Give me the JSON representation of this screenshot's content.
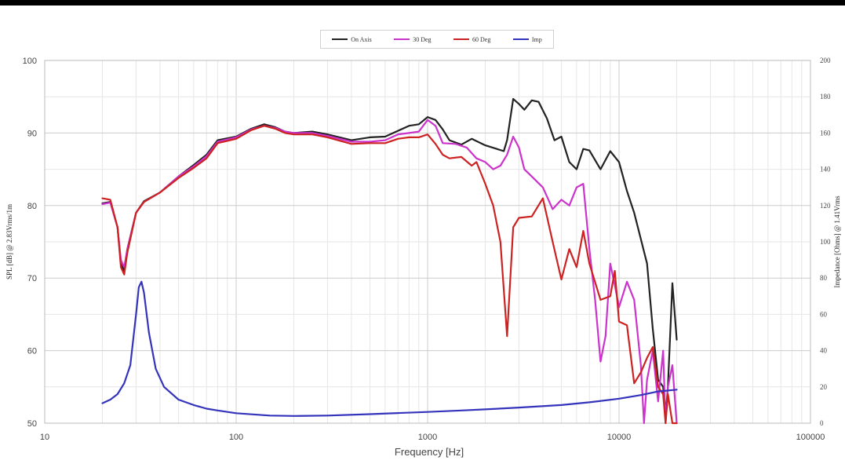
{
  "chart_data": {
    "type": "line",
    "x_scale": "log",
    "xlim": [
      10,
      100000
    ],
    "ylim": [
      50,
      100
    ],
    "y2lim": [
      0,
      200
    ],
    "grid": true,
    "legend_placement": "top-center",
    "xlabel": "Frequency [Hz]",
    "ylabel": "SPL [dB] @ 2.83Vrms/1m",
    "y2label": "Impedance [Ohms] @ 1.41Vrms",
    "x_ticks": [
      "10",
      "100",
      "1000",
      "10000",
      "100000"
    ],
    "y_ticks": [
      "50",
      "60",
      "70",
      "80",
      "90",
      "100"
    ],
    "y2_ticks": [
      "0",
      "20",
      "40",
      "60",
      "80",
      "100",
      "120",
      "140",
      "160",
      "180",
      "200"
    ],
    "series": [
      {
        "name": "On Axis",
        "axis": "left",
        "color": "#222222",
        "points": [
          [
            20,
            80.3
          ],
          [
            22,
            80.5
          ],
          [
            24,
            77
          ],
          [
            25,
            72
          ],
          [
            26,
            71
          ],
          [
            27,
            74
          ],
          [
            30,
            79
          ],
          [
            33,
            80.6
          ],
          [
            40,
            81.8
          ],
          [
            50,
            84
          ],
          [
            60,
            85.6
          ],
          [
            70,
            87
          ],
          [
            80,
            89
          ],
          [
            100,
            89.5
          ],
          [
            120,
            90.6
          ],
          [
            140,
            91.2
          ],
          [
            160,
            90.8
          ],
          [
            180,
            90.2
          ],
          [
            200,
            90
          ],
          [
            250,
            90.2
          ],
          [
            300,
            89.8
          ],
          [
            400,
            89
          ],
          [
            500,
            89.4
          ],
          [
            600,
            89.5
          ],
          [
            700,
            90.3
          ],
          [
            800,
            91
          ],
          [
            900,
            91.2
          ],
          [
            1000,
            92.2
          ],
          [
            1100,
            91.8
          ],
          [
            1200,
            90.5
          ],
          [
            1300,
            89
          ],
          [
            1500,
            88.4
          ],
          [
            1700,
            89.2
          ],
          [
            2000,
            88.3
          ],
          [
            2300,
            87.8
          ],
          [
            2500,
            87.5
          ],
          [
            2600,
            89
          ],
          [
            2800,
            94.7
          ],
          [
            3000,
            94
          ],
          [
            3200,
            93.2
          ],
          [
            3500,
            94.5
          ],
          [
            3800,
            94.3
          ],
          [
            4200,
            92
          ],
          [
            4600,
            89
          ],
          [
            5000,
            89.5
          ],
          [
            5500,
            86
          ],
          [
            6000,
            85
          ],
          [
            6500,
            87.8
          ],
          [
            7000,
            87.6
          ],
          [
            8000,
            85
          ],
          [
            9000,
            87.5
          ],
          [
            10000,
            86
          ],
          [
            11000,
            82
          ],
          [
            12000,
            79
          ],
          [
            14000,
            72
          ],
          [
            15000,
            63
          ],
          [
            16000,
            56
          ],
          [
            17000,
            55
          ],
          [
            17500,
            51
          ],
          [
            18000,
            55
          ],
          [
            19000,
            69.3
          ],
          [
            20000,
            61.5
          ]
        ]
      },
      {
        "name": "30 Deg",
        "axis": "left",
        "color": "#cc33cc",
        "points": [
          [
            20,
            80.2
          ],
          [
            22,
            80.4
          ],
          [
            24,
            77
          ],
          [
            25,
            72.5
          ],
          [
            26,
            71.5
          ],
          [
            27,
            74
          ],
          [
            30,
            79
          ],
          [
            33,
            80.5
          ],
          [
            40,
            81.8
          ],
          [
            50,
            84
          ],
          [
            60,
            85.4
          ],
          [
            70,
            86.8
          ],
          [
            80,
            88.8
          ],
          [
            100,
            89.4
          ],
          [
            120,
            90.5
          ],
          [
            140,
            91
          ],
          [
            160,
            90.7
          ],
          [
            180,
            90.2
          ],
          [
            200,
            90
          ],
          [
            250,
            90
          ],
          [
            300,
            89.6
          ],
          [
            400,
            88.8
          ],
          [
            500,
            88.8
          ],
          [
            600,
            89
          ],
          [
            700,
            89.8
          ],
          [
            800,
            90
          ],
          [
            900,
            90.2
          ],
          [
            1000,
            91.8
          ],
          [
            1100,
            91
          ],
          [
            1200,
            88.6
          ],
          [
            1400,
            88.5
          ],
          [
            1600,
            88
          ],
          [
            1800,
            86.5
          ],
          [
            2000,
            86
          ],
          [
            2200,
            85
          ],
          [
            2400,
            85.5
          ],
          [
            2600,
            87
          ],
          [
            2800,
            89.5
          ],
          [
            3000,
            88
          ],
          [
            3200,
            85
          ],
          [
            3500,
            84
          ],
          [
            4000,
            82.5
          ],
          [
            4500,
            79.5
          ],
          [
            5000,
            80.8
          ],
          [
            5500,
            80
          ],
          [
            6000,
            82.5
          ],
          [
            6500,
            83
          ],
          [
            7000,
            74
          ],
          [
            7500,
            67
          ],
          [
            8000,
            58.5
          ],
          [
            8500,
            62
          ],
          [
            9000,
            72
          ],
          [
            9500,
            69
          ],
          [
            10000,
            66
          ],
          [
            11000,
            69.5
          ],
          [
            12000,
            67
          ],
          [
            13000,
            58
          ],
          [
            13500,
            50
          ],
          [
            14000,
            56
          ],
          [
            15000,
            60
          ],
          [
            16000,
            53
          ],
          [
            17000,
            60
          ],
          [
            17500,
            50
          ],
          [
            18000,
            55
          ],
          [
            19000,
            58
          ],
          [
            20000,
            50
          ]
        ]
      },
      {
        "name": "60 Deg",
        "axis": "left",
        "color": "#cc2222",
        "points": [
          [
            20,
            81
          ],
          [
            22,
            80.8
          ],
          [
            24,
            77
          ],
          [
            25,
            71.5
          ],
          [
            26,
            70.5
          ],
          [
            27,
            73.5
          ],
          [
            30,
            79
          ],
          [
            33,
            80.5
          ],
          [
            40,
            81.8
          ],
          [
            50,
            83.8
          ],
          [
            60,
            85.2
          ],
          [
            70,
            86.5
          ],
          [
            80,
            88.6
          ],
          [
            100,
            89.2
          ],
          [
            120,
            90.4
          ],
          [
            140,
            91
          ],
          [
            160,
            90.6
          ],
          [
            180,
            90
          ],
          [
            200,
            89.8
          ],
          [
            250,
            89.8
          ],
          [
            300,
            89.4
          ],
          [
            400,
            88.5
          ],
          [
            500,
            88.6
          ],
          [
            600,
            88.6
          ],
          [
            700,
            89.2
          ],
          [
            800,
            89.4
          ],
          [
            900,
            89.4
          ],
          [
            1000,
            89.8
          ],
          [
            1100,
            88.5
          ],
          [
            1200,
            87
          ],
          [
            1300,
            86.5
          ],
          [
            1500,
            86.7
          ],
          [
            1700,
            85.5
          ],
          [
            1800,
            86
          ],
          [
            2000,
            83
          ],
          [
            2200,
            80
          ],
          [
            2400,
            75
          ],
          [
            2600,
            62
          ],
          [
            2800,
            77
          ],
          [
            3000,
            78.3
          ],
          [
            3500,
            78.5
          ],
          [
            4000,
            81
          ],
          [
            4500,
            75
          ],
          [
            5000,
            69.8
          ],
          [
            5500,
            74
          ],
          [
            6000,
            71.5
          ],
          [
            6500,
            76.5
          ],
          [
            7000,
            72
          ],
          [
            8000,
            67
          ],
          [
            9000,
            67.5
          ],
          [
            9500,
            71
          ],
          [
            10000,
            64
          ],
          [
            11000,
            63.5
          ],
          [
            12000,
            55.5
          ],
          [
            13000,
            57
          ],
          [
            14000,
            59
          ],
          [
            15000,
            60.5
          ],
          [
            16000,
            55
          ],
          [
            17000,
            54
          ],
          [
            17500,
            50
          ],
          [
            18000,
            54
          ],
          [
            19000,
            50
          ],
          [
            20000,
            50
          ]
        ]
      },
      {
        "name": "Imp",
        "axis": "right",
        "color": "#3333bb",
        "points": [
          [
            20,
            11
          ],
          [
            22,
            13
          ],
          [
            24,
            16
          ],
          [
            26,
            22
          ],
          [
            28,
            32
          ],
          [
            30,
            60
          ],
          [
            31,
            75
          ],
          [
            32,
            78
          ],
          [
            33,
            72
          ],
          [
            35,
            50
          ],
          [
            38,
            30
          ],
          [
            42,
            20
          ],
          [
            50,
            13
          ],
          [
            60,
            10
          ],
          [
            70,
            8
          ],
          [
            80,
            7
          ],
          [
            100,
            5.5
          ],
          [
            150,
            4.2
          ],
          [
            200,
            4
          ],
          [
            300,
            4.2
          ],
          [
            500,
            5
          ],
          [
            700,
            5.6
          ],
          [
            1000,
            6.2
          ],
          [
            1500,
            7
          ],
          [
            2000,
            7.6
          ],
          [
            3000,
            8.6
          ],
          [
            5000,
            10
          ],
          [
            7000,
            11.5
          ],
          [
            10000,
            13.5
          ],
          [
            13000,
            15.5
          ],
          [
            16000,
            17.5
          ],
          [
            20000,
            18.5
          ]
        ]
      }
    ]
  }
}
